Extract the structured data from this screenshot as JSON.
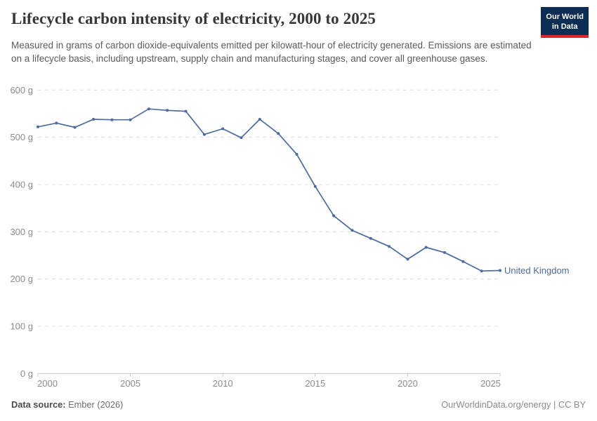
{
  "header": {
    "title": "Lifecycle carbon intensity of electricity, 2000 to 2025",
    "subtitle": "Measured in grams of carbon dioxide-equivalents emitted per kilowatt-hour of electricity generated. Emissions are estimated on a lifecycle basis, including upstream, supply chain and manufacturing stages, and cover all greenhouse gases.",
    "logo": {
      "line1": "Our World",
      "line2": "in Data",
      "bg_color": "#0d2d55",
      "accent_color": "#e0262d"
    }
  },
  "chart_data": {
    "type": "line",
    "title": "Lifecycle carbon intensity of electricity, 2000 to 2025",
    "unit_suffix": "g",
    "x": [
      2000,
      2001,
      2002,
      2003,
      2004,
      2005,
      2006,
      2007,
      2008,
      2009,
      2010,
      2011,
      2012,
      2013,
      2014,
      2015,
      2016,
      2017,
      2018,
      2019,
      2020,
      2021,
      2022,
      2023,
      2024,
      2025
    ],
    "series": [
      {
        "name": "United Kingdom",
        "color": "#4c6a9c",
        "values": [
          522,
          530,
          521,
          538,
          537,
          537,
          560,
          557,
          555,
          506,
          518,
          499,
          538,
          508,
          464,
          396,
          334,
          303,
          286,
          269,
          242,
          267,
          256,
          237,
          217,
          218
        ]
      }
    ],
    "ylim": [
      0,
      600
    ],
    "yticks": [
      0,
      100,
      200,
      300,
      400,
      500,
      600
    ],
    "xticks": [
      2000,
      2005,
      2010,
      2015,
      2020,
      2025
    ],
    "grid": "horizontal-dashed",
    "legend": "line-end-label",
    "colors": {
      "gridline": "#dcdcdc",
      "axis": "#c8c8c8",
      "tick_text": "#8c8c8c"
    }
  },
  "footer": {
    "data_source_label": "Data source:",
    "data_source_value": " Ember (2026)",
    "right_text": "OurWorldinData.org/energy | CC BY"
  }
}
